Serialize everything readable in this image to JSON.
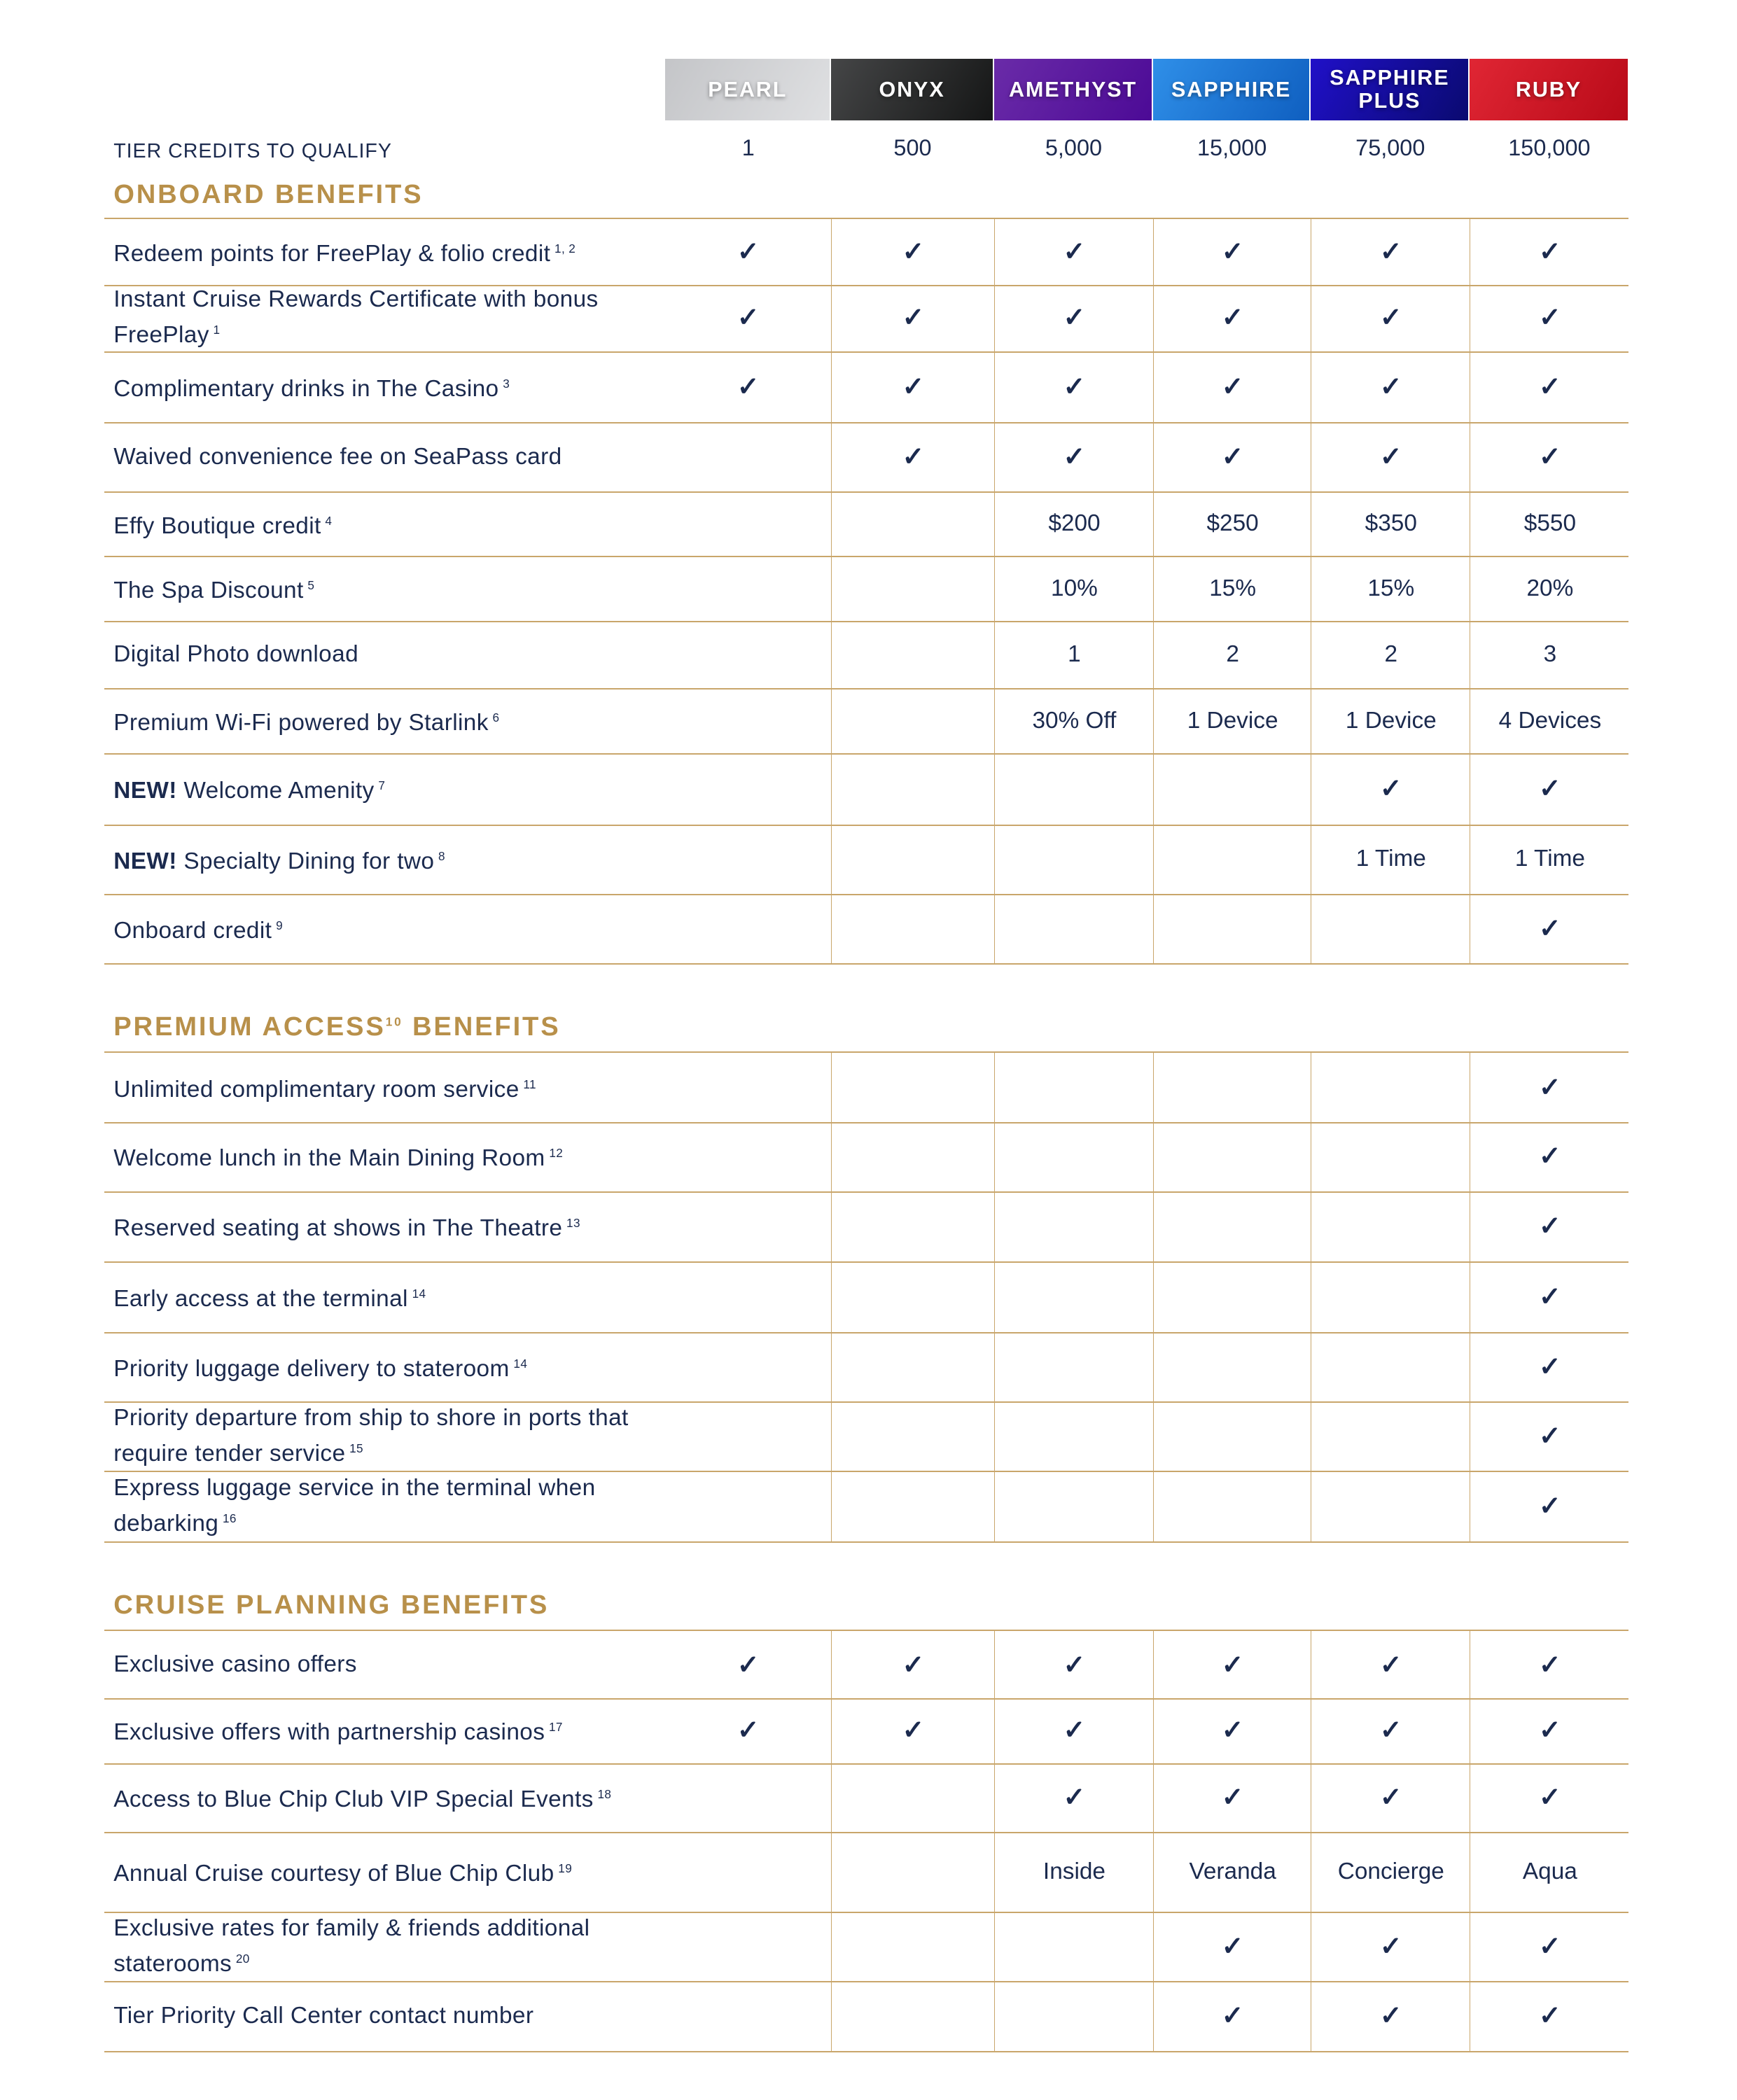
{
  "tiers": [
    {
      "name": "PEARL",
      "color": "#cfd0d2",
      "credits": "1"
    },
    {
      "name": "ONYX",
      "color": "#2e2f30",
      "credits": "500"
    },
    {
      "name": "AMETHYST",
      "color": "#5d1fa0",
      "credits": "5,000"
    },
    {
      "name": "SAPPHIRE",
      "color": "#1f7fdc",
      "credits": "15,000"
    },
    {
      "name": "SAPPHIRE PLUS",
      "color": "#1c14b8",
      "credits": "75,000"
    },
    {
      "name": "RUBY",
      "color": "#d1182a",
      "credits": "150,000"
    }
  ],
  "credits_label": "TIER CREDITS TO QUALIFY",
  "colors": {
    "gold": "#b8904a",
    "navy": "#1b2a4e",
    "rule": "#c9a66b"
  },
  "check_icon": "✓",
  "sections": [
    {
      "title": "ONBOARD BENEFITS",
      "title_sup": "",
      "title_after": "",
      "rows": [
        {
          "new": "",
          "label": "Redeem points for FreePlay & folio credit",
          "sup": "1, 2",
          "values": [
            "check",
            "check",
            "check",
            "check",
            "check",
            "check"
          ]
        },
        {
          "new": "",
          "label": "Instant Cruise Rewards Certificate with bonus FreePlay",
          "sup": "1",
          "values": [
            "check",
            "check",
            "check",
            "check",
            "check",
            "check"
          ]
        },
        {
          "new": "",
          "label": "Complimentary drinks in The Casino",
          "sup": "3",
          "values": [
            "check",
            "check",
            "check",
            "check",
            "check",
            "check"
          ]
        },
        {
          "new": "",
          "label": "Waived convenience fee on SeaPass card",
          "sup": "",
          "values": [
            "",
            "check",
            "check",
            "check",
            "check",
            "check"
          ]
        },
        {
          "new": "",
          "label": "Effy Boutique credit",
          "sup": "4",
          "values": [
            "",
            "",
            "$200",
            "$250",
            "$350",
            "$550"
          ]
        },
        {
          "new": "",
          "label": "The Spa Discount",
          "sup": "5",
          "values": [
            "",
            "",
            "10%",
            "15%",
            "15%",
            "20%"
          ]
        },
        {
          "new": "",
          "label": "Digital Photo download",
          "sup": "",
          "values": [
            "",
            "",
            "1",
            "2",
            "2",
            "3"
          ]
        },
        {
          "new": "",
          "label": "Premium Wi-Fi powered by Starlink",
          "sup": "6",
          "values": [
            "",
            "",
            "30% Off",
            "1 Device",
            "1 Device",
            "4 Devices"
          ]
        },
        {
          "new": "NEW!",
          "label": "Welcome Amenity",
          "sup": "7",
          "values": [
            "",
            "",
            "",
            "",
            "check",
            "check"
          ]
        },
        {
          "new": "NEW!",
          "label": "Specialty Dining for two",
          "sup": "8",
          "values": [
            "",
            "",
            "",
            "",
            "1 Time",
            "1 Time"
          ]
        },
        {
          "new": "",
          "label": "Onboard credit",
          "sup": "9",
          "values": [
            "",
            "",
            "",
            "",
            "",
            "check"
          ]
        }
      ]
    },
    {
      "title": "PREMIUM ACCESS",
      "title_sup": "10",
      "title_after": " BENEFITS",
      "rows": [
        {
          "new": "",
          "label": "Unlimited complimentary room service",
          "sup": "11",
          "values": [
            "",
            "",
            "",
            "",
            "",
            "check"
          ]
        },
        {
          "new": "",
          "label": "Welcome lunch in the Main Dining Room",
          "sup": "12",
          "values": [
            "",
            "",
            "",
            "",
            "",
            "check"
          ]
        },
        {
          "new": "",
          "label": "Reserved seating at shows in The Theatre",
          "sup": "13",
          "values": [
            "",
            "",
            "",
            "",
            "",
            "check"
          ]
        },
        {
          "new": "",
          "label": "Early access at the terminal",
          "sup": "14",
          "values": [
            "",
            "",
            "",
            "",
            "",
            "check"
          ]
        },
        {
          "new": "",
          "label": "Priority luggage delivery to stateroom",
          "sup": "14",
          "values": [
            "",
            "",
            "",
            "",
            "",
            "check"
          ]
        },
        {
          "new": "",
          "label": "Priority departure from ship to shore in ports that require tender service",
          "sup": "15",
          "values": [
            "",
            "",
            "",
            "",
            "",
            "check"
          ]
        },
        {
          "new": "",
          "label": "Express luggage service in the terminal when debarking",
          "sup": "16",
          "values": [
            "",
            "",
            "",
            "",
            "",
            "check"
          ]
        }
      ]
    },
    {
      "title": "CRUISE PLANNING BENEFITS",
      "title_sup": "",
      "title_after": "",
      "rows": [
        {
          "new": "",
          "label": "Exclusive casino offers",
          "sup": "",
          "values": [
            "check",
            "check",
            "check",
            "check",
            "check",
            "check"
          ]
        },
        {
          "new": "",
          "label": "Exclusive offers with partnership casinos",
          "sup": "17",
          "values": [
            "check",
            "check",
            "check",
            "check",
            "check",
            "check"
          ]
        },
        {
          "new": "",
          "label": "Access to Blue Chip Club VIP Special Events",
          "sup": "18",
          "values": [
            "",
            "",
            "check",
            "check",
            "check",
            "check"
          ]
        },
        {
          "new": "",
          "label": "Annual Cruise courtesy of Blue Chip Club",
          "sup": "19",
          "values": [
            "",
            "",
            "Inside",
            "Veranda",
            "Concierge",
            "Aqua"
          ]
        },
        {
          "new": "",
          "label": "Exclusive rates for family & friends additional staterooms",
          "sup": "20",
          "values": [
            "",
            "",
            "",
            "check",
            "check",
            "check"
          ]
        },
        {
          "new": "",
          "label": "Tier Priority Call Center contact number",
          "sup": "",
          "values": [
            "",
            "",
            "",
            "check",
            "check",
            "check"
          ]
        }
      ]
    }
  ]
}
